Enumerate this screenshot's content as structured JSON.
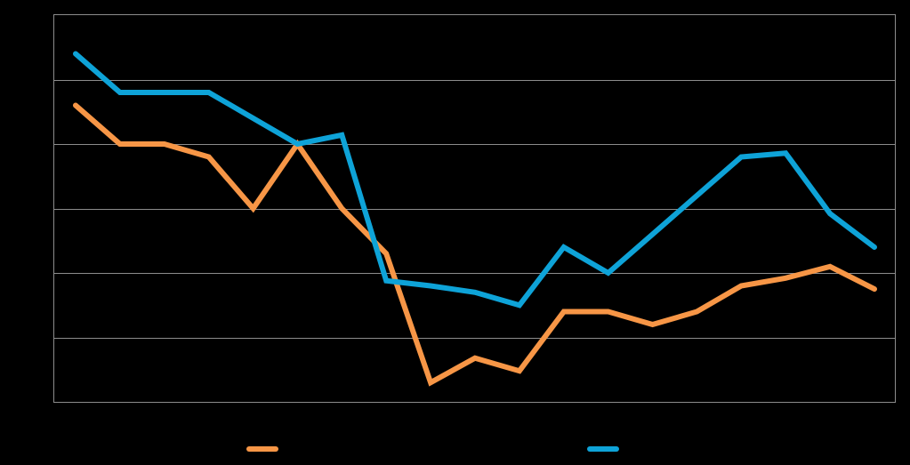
{
  "chart_data": {
    "type": "line",
    "title": "",
    "xlabel": "",
    "ylabel": "",
    "x": [
      1,
      2,
      3,
      4,
      5,
      6,
      7,
      8,
      9,
      10,
      11,
      12,
      13,
      14,
      15,
      16,
      17,
      18,
      19
    ],
    "ylim": [
      0,
      6
    ],
    "grid": true,
    "legend_position": "bottom",
    "series": [
      {
        "name": "",
        "color": "#f79646",
        "values": [
          4.6,
          4.0,
          4.0,
          3.8,
          3.0,
          4.0,
          3.0,
          2.3,
          0.3,
          0.68,
          0.48,
          1.4,
          1.4,
          1.2,
          1.4,
          1.8,
          1.92,
          2.1,
          1.75
        ]
      },
      {
        "name": "",
        "color": "#0ea3d8",
        "values": [
          5.4,
          4.8,
          4.8,
          4.8,
          4.4,
          4.0,
          4.14,
          1.88,
          1.8,
          1.7,
          1.5,
          2.4,
          2.0,
          2.6,
          3.2,
          3.8,
          3.86,
          2.92,
          2.4
        ]
      }
    ]
  }
}
